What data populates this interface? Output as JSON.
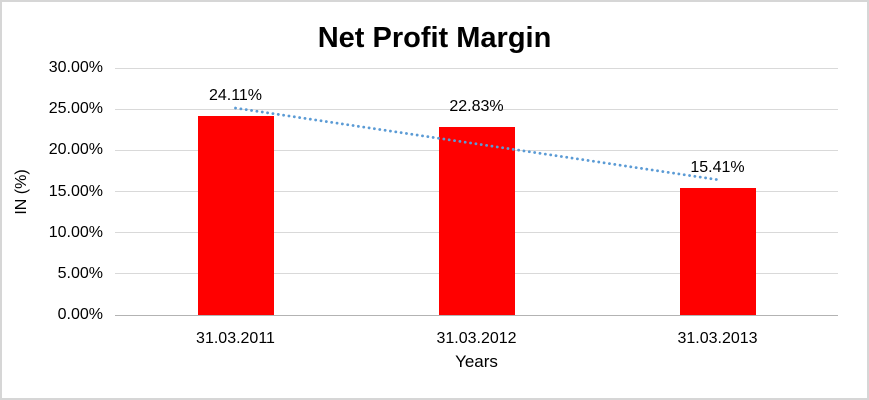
{
  "chart_data": {
    "type": "bar",
    "title": "Net Profit Margin",
    "xlabel": "Years",
    "ylabel": "IN (%)",
    "categories": [
      "31.03.2011",
      "31.03.2012",
      "31.03.2013"
    ],
    "values": [
      24.11,
      22.83,
      15.41
    ],
    "data_labels": [
      "24.11%",
      "22.83%",
      "15.41%"
    ],
    "ylim": [
      0,
      30
    ],
    "ytick_step": 5,
    "ytick_labels": [
      "0.00%",
      "5.00%",
      "10.00%",
      "15.00%",
      "20.00%",
      "25.00%",
      "30.00%"
    ],
    "grid": true,
    "legend_position": "none",
    "bar_color": "#ff0000",
    "trendline": {
      "type": "linear",
      "style": "dotted",
      "color": "#5b9bd5"
    }
  }
}
